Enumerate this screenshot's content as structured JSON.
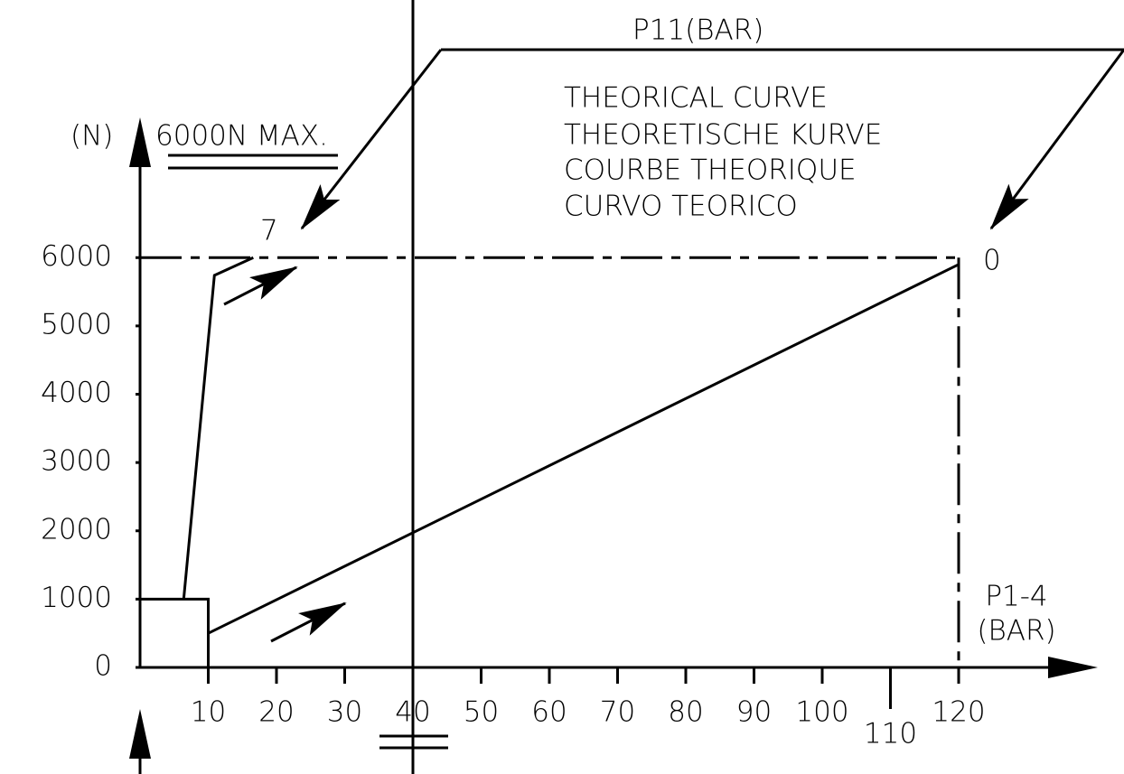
{
  "chart_data": {
    "type": "line",
    "y_label": "(N)",
    "y_note": "6000N MAX.",
    "x_label": [
      "P1-4",
      "(BAR)"
    ],
    "top_label": "P11(BAR)",
    "legend_text": [
      "THEORICAL CURVE",
      "THEORETISCHE KURVE",
      "COURBE THEORIQUE",
      "CURVO TEORICO"
    ],
    "annotations": [
      "7",
      "0"
    ],
    "xlim": [
      0,
      140
    ],
    "ylim": [
      0,
      8000
    ],
    "xticks": [
      10,
      20,
      30,
      40,
      50,
      60,
      70,
      80,
      90,
      100,
      110,
      120
    ],
    "yticks": [
      0,
      1000,
      2000,
      3000,
      4000,
      5000,
      6000
    ],
    "series": [
      {
        "color": "#000000",
        "x": [
          0,
          10,
          10
        ],
        "values": [
          1000,
          1000,
          0
        ]
      },
      {
        "color": "#000000",
        "x": [
          6.4,
          10.9,
          16.6
        ],
        "values": [
          1000,
          5740,
          6000
        ]
      },
      {
        "color": "#000000",
        "x": [
          10,
          120
        ],
        "values": [
          500,
          5900
        ]
      }
    ],
    "reference_lines": [
      {
        "y": 6000,
        "style": "dashed"
      },
      {
        "x": 120,
        "style": "dashed"
      },
      {
        "x": 40,
        "style": "solid"
      }
    ]
  }
}
